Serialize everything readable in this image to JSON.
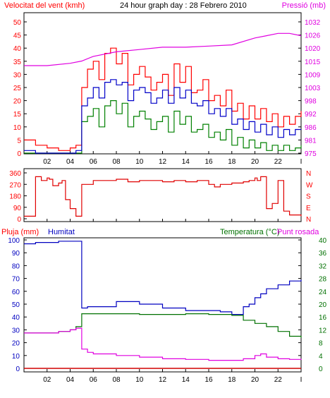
{
  "header": {
    "left_label": "Velocitat del vent (kmh)",
    "title": "24 hour graph day : 28 Febrero 2010",
    "right_label": "Pressió (mb)"
  },
  "labels_bottom": {
    "rain": "Pluja (mm)",
    "humidity": "Humitat",
    "temperature": "Temperatura (°C)",
    "dewpoint": "Punt rosada"
  },
  "colors": {
    "wind_gust": "#ff0000",
    "wind_avg": "#0000c8",
    "wind_green": "#008000",
    "pressure": "#e000e0",
    "direction": "#e00000",
    "humidity": "#0000c0",
    "temperature": "#007000",
    "dewpoint": "#e000e0",
    "rain": "#d00000",
    "text_red": "#ff0000",
    "text_blue": "#0000c0",
    "text_green": "#007000",
    "text_magenta": "#e000e0"
  },
  "chart_data": [
    {
      "type": "line",
      "title": "24 hour graph day : 28 Febrero 2010",
      "ylabel": "Velocitat del vent (kmh)",
      "y2label": "Pressió (mb)",
      "x_ticks": [
        "02",
        "04",
        "06",
        "08",
        "10",
        "12",
        "14",
        "16",
        "18",
        "20",
        "22",
        "I"
      ],
      "y_ticks": [
        "0",
        "5",
        "10",
        "15",
        "20",
        "25",
        "30",
        "35",
        "40",
        "45",
        "50"
      ],
      "y2_ticks": [
        "975",
        "981",
        "986",
        "992",
        "998",
        "1003",
        "1009",
        "1015",
        "1020",
        "1026",
        "1032"
      ],
      "ylim": [
        0,
        50
      ],
      "y2lim": [
        975,
        1032
      ],
      "series": [
        {
          "x": [
            0,
            1,
            2,
            3,
            4,
            4.5,
            5,
            5.5,
            6,
            6.5,
            7,
            7.5,
            8,
            8.5,
            9,
            9.5,
            10,
            10.5,
            11,
            11.5,
            12,
            12.5,
            13,
            13.5,
            14,
            14.5,
            15,
            15.5,
            16,
            16.5,
            17,
            17.5,
            18,
            18.5,
            19,
            19.5,
            20,
            20.5,
            21,
            21.5,
            22,
            22.5,
            23,
            23.5,
            24
          ],
          "values": [
            5,
            3,
            2,
            1,
            2,
            3,
            25,
            32,
            35,
            28,
            38,
            40,
            34,
            38,
            26,
            30,
            33,
            29,
            24,
            27,
            30,
            22,
            34,
            27,
            33,
            23,
            24,
            28,
            20,
            22,
            18,
            24,
            16,
            19,
            13,
            18,
            13,
            17,
            12,
            15,
            10,
            14,
            11,
            14,
            16
          ]
        },
        {
          "x": [
            0,
            1,
            2,
            3,
            4,
            4.5,
            5,
            5.5,
            6,
            6.5,
            7,
            7.5,
            8,
            8.5,
            9,
            9.5,
            10,
            10.5,
            11,
            11.5,
            12,
            12.5,
            13,
            13.5,
            14,
            14.5,
            15,
            15.5,
            16,
            16.5,
            17,
            17.5,
            18,
            18.5,
            19,
            19.5,
            20,
            20.5,
            21,
            21.5,
            22,
            22.5,
            23,
            23.5,
            24
          ],
          "values": [
            1,
            0,
            0,
            0,
            0,
            1,
            18,
            21,
            25,
            21,
            27,
            28,
            26,
            27,
            20,
            24,
            25,
            23,
            19,
            21,
            24,
            19,
            25,
            21,
            24,
            19,
            18,
            20,
            15,
            17,
            14,
            17,
            11,
            13,
            9,
            12,
            8,
            11,
            7,
            10,
            6,
            9,
            7,
            9,
            9
          ]
        },
        {
          "x": [
            0,
            1,
            2,
            3,
            4,
            4.5,
            5,
            5.5,
            6,
            6.5,
            7,
            7.5,
            8,
            8.5,
            9,
            9.5,
            10,
            10.5,
            11,
            11.5,
            12,
            12.5,
            13,
            13.5,
            14,
            14.5,
            15,
            15.5,
            16,
            16.5,
            17,
            17.5,
            18,
            18.5,
            19,
            19.5,
            20,
            20.5,
            21,
            21.5,
            22,
            22.5,
            23,
            23.5,
            24
          ],
          "values": [
            0,
            0,
            0,
            0,
            0,
            0,
            12,
            14,
            17,
            10,
            18,
            20,
            15,
            19,
            10,
            14,
            16,
            13,
            9,
            12,
            14,
            8,
            16,
            11,
            14,
            8,
            9,
            11,
            6,
            8,
            5,
            9,
            3,
            6,
            2,
            5,
            2,
            4,
            1,
            3,
            1,
            3,
            1,
            2,
            3
          ]
        },
        {
          "x": [
            0,
            2,
            4,
            5,
            6,
            8,
            10,
            12,
            14,
            16,
            18,
            20,
            21,
            22,
            23,
            24
          ],
          "values": [
            1013,
            1013,
            1014,
            1015,
            1017,
            1019,
            1020,
            1021,
            1021,
            1021.5,
            1022,
            1025,
            1026,
            1027,
            1027,
            1026
          ]
        }
      ]
    },
    {
      "type": "scatter",
      "title": "",
      "y_ticks": [
        "360",
        "270",
        "180",
        "90",
        "0"
      ],
      "y2_ticks": [
        "N",
        "W",
        "S",
        "E",
        "N"
      ],
      "ylim": [
        0,
        360
      ],
      "x": [
        0,
        0.7,
        1,
        1.5,
        2,
        2.2,
        2.5,
        3,
        3.3,
        3.6,
        4,
        4.5,
        5,
        6,
        7,
        8,
        9,
        10,
        11,
        12,
        13,
        14,
        15,
        16,
        16.5,
        17,
        18,
        19,
        19.5,
        20,
        20.2,
        20.5,
        21,
        21.5,
        22,
        22.5,
        23,
        24
      ],
      "values": [
        20,
        20,
        330,
        300,
        320,
        310,
        260,
        280,
        300,
        150,
        80,
        20,
        270,
        300,
        300,
        310,
        290,
        300,
        300,
        290,
        300,
        290,
        300,
        270,
        250,
        270,
        280,
        290,
        300,
        320,
        300,
        330,
        80,
        120,
        300,
        60,
        30,
        20
      ]
    },
    {
      "type": "line",
      "ylabel": "Pluja (mm)",
      "y2label": "Temperatura (°C)",
      "y_ticks": [
        "0",
        "10",
        "20",
        "30",
        "40",
        "50",
        "60",
        "70",
        "80",
        "90",
        "100"
      ],
      "y2_ticks": [
        "0",
        "4",
        "8",
        "12",
        "16",
        "20",
        "24",
        "28",
        "32",
        "36",
        "40"
      ],
      "ylim": [
        0,
        100
      ],
      "y2lim": [
        0,
        40
      ],
      "series": [
        {
          "name": "Humitat",
          "x": [
            0,
            1,
            2,
            3,
            4,
            4.5,
            5,
            5.5,
            6,
            8,
            10,
            12,
            14,
            16,
            17,
            18,
            18.5,
            19,
            19.5,
            20,
            20.5,
            21,
            22,
            23,
            24
          ],
          "values": [
            97,
            98,
            98,
            99,
            99,
            99,
            47,
            48,
            48,
            52,
            50,
            47,
            45,
            45,
            44,
            42,
            42,
            48,
            50,
            55,
            58,
            62,
            65,
            68,
            69
          ]
        },
        {
          "name": "Temperatura (°C)",
          "x": [
            0,
            1,
            2,
            3,
            4,
            4.5,
            5,
            5.5,
            6,
            8,
            10,
            12,
            14,
            16,
            17,
            18,
            19,
            20,
            21,
            22,
            23,
            24
          ],
          "values": [
            11,
            11,
            11,
            11.5,
            12,
            13,
            17,
            17,
            17,
            17,
            16.8,
            16.8,
            17,
            16.8,
            16.8,
            16.5,
            15,
            14,
            13,
            11.5,
            10,
            9.5
          ]
        },
        {
          "name": "Punt rosada",
          "x": [
            0,
            1,
            2,
            3,
            4,
            4.5,
            5,
            5.5,
            6,
            8,
            10,
            12,
            14,
            16,
            18,
            19,
            20,
            20.5,
            21,
            22,
            23,
            24
          ],
          "values": [
            11,
            11,
            11,
            11.5,
            12,
            12.5,
            6,
            5,
            4.5,
            4,
            3.5,
            3,
            2.8,
            2.5,
            2.5,
            3,
            4,
            4.5,
            3.5,
            3,
            2.8,
            3
          ]
        },
        {
          "name": "Pluja (mm)",
          "x": [
            0,
            24
          ],
          "values": [
            0,
            0
          ]
        }
      ]
    }
  ]
}
